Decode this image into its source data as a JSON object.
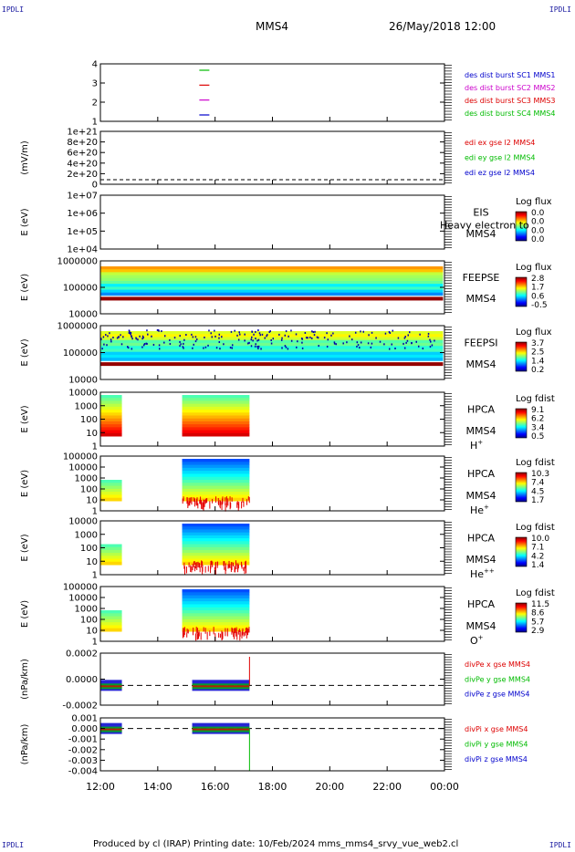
{
  "corners": {
    "tl": "IPDLI",
    "tr": "IPDLI",
    "bl": "IPDLI",
    "br": "IPDLI"
  },
  "header": {
    "spacecraft": "MMS4",
    "date_time": "26/May/2018 12:00"
  },
  "footer": {
    "text": "Produced by cl (IRAP)    Printing date: 10/Feb/2024    mms_mms4_srvy_vue_web2.cl"
  },
  "colors": {
    "mms1": "#0000cc",
    "mms2": "#cc00cc",
    "mms3": "#dd0000",
    "mms4": "#00bb00",
    "axis": "#000000"
  },
  "chart_data": {
    "type": "stacked-timeseries",
    "x": {
      "ticks": [
        "12:00",
        "14:00",
        "16:00",
        "18:00",
        "20:00",
        "22:00",
        "00:00"
      ],
      "start_hour": 12,
      "end_hour": 24
    },
    "panels": [
      {
        "id": "burst",
        "ylabel": "",
        "yticks": [
          "4",
          "3",
          "2",
          "1"
        ],
        "legend": [
          {
            "text": "des dist burst SC1 MMS1",
            "color": "#0000cc"
          },
          {
            "text": "des dist burst SC2 MMS2",
            "color": "#cc00cc"
          },
          {
            "text": "des dist burst SC3 MMS3",
            "color": "#dd0000"
          },
          {
            "text": "des dist burst SC4 MMS4",
            "color": "#00bb00"
          }
        ],
        "segments": [
          {
            "sc": 4,
            "start": 15.45,
            "end": 15.8
          },
          {
            "sc": 3,
            "start": 15.45,
            "end": 15.8
          },
          {
            "sc": 2,
            "start": 15.45,
            "end": 15.8
          },
          {
            "sc": 1,
            "start": 15.45,
            "end": 15.8
          }
        ]
      },
      {
        "id": "edi",
        "ylabel": "(mV/m)",
        "yticks": [
          "1e+21",
          "8e+20",
          "6e+20",
          "4e+20",
          "2e+20",
          "0"
        ],
        "legend": [
          {
            "text": "edi ex gse l2 MMS4",
            "color": "#dd0000"
          },
          {
            "text": "edi ey gse l2 MMS4",
            "color": "#00bb00"
          },
          {
            "text": "edi ez gse l2 MMS4",
            "color": "#0000cc"
          }
        ]
      },
      {
        "id": "eis",
        "ylabel": "E (eV)",
        "yticks": [
          "1e+07",
          "1e+06",
          "1e+05",
          "1e+04"
        ],
        "instrument": [
          "EIS",
          "MMS4"
        ],
        "overlay": "Heavy electron to",
        "cbar": {
          "title": "Log flux",
          "ticks": [
            "0.0",
            "0.0",
            "0.0",
            "0.0"
          ]
        }
      },
      {
        "id": "feepse",
        "ylabel": "E (eV)",
        "yticks": [
          "1000000",
          "100000",
          "10000"
        ],
        "instrument": [
          "FEEPSE",
          "MMS4"
        ],
        "cbar": {
          "title": "Log flux",
          "ticks": [
            "2.8",
            "1.7",
            "0.6",
            "-0.5"
          ]
        },
        "coverage": [
          {
            "start": 12.0,
            "end": 23.95
          }
        ]
      },
      {
        "id": "feepsi",
        "ylabel": "E (eV)",
        "yticks": [
          "1000000",
          "100000",
          "10000"
        ],
        "instrument": [
          "FEEPSI",
          "MMS4"
        ],
        "cbar": {
          "title": "Log flux",
          "ticks": [
            "3.7",
            "2.5",
            "1.4",
            "0.2"
          ]
        },
        "coverage": [
          {
            "start": 12.0,
            "end": 23.95
          }
        ]
      },
      {
        "id": "hpca_h",
        "ylabel": "E (eV)",
        "yticks": [
          "10000",
          "1000",
          "100",
          "10",
          "1"
        ],
        "instrument": [
          "HPCA",
          "MMS4"
        ],
        "species": "H",
        "species_sup": "+",
        "cbar": {
          "title": "Log fdist",
          "ticks": [
            "9.1",
            "6.2",
            "3.4",
            "0.5"
          ]
        },
        "coverage": [
          {
            "start": 12.0,
            "end": 12.75
          },
          {
            "start": 14.85,
            "end": 17.2
          }
        ]
      },
      {
        "id": "hpca_he",
        "ylabel": "E (eV)",
        "yticks": [
          "100000",
          "10000",
          "1000",
          "100",
          "10",
          "1"
        ],
        "instrument": [
          "HPCA",
          "MMS4"
        ],
        "species": "He",
        "species_sup": "+",
        "cbar": {
          "title": "Log fdist",
          "ticks": [
            "10.3",
            "7.4",
            "4.5",
            "1.7"
          ]
        },
        "coverage": [
          {
            "start": 12.0,
            "end": 12.75
          },
          {
            "start": 14.85,
            "end": 17.2
          }
        ]
      },
      {
        "id": "hpca_hepp",
        "ylabel": "E (eV)",
        "yticks": [
          "10000",
          "1000",
          "100",
          "10",
          "1"
        ],
        "instrument": [
          "HPCA",
          "MMS4"
        ],
        "species": "He",
        "species_sup": "++",
        "cbar": {
          "title": "Log fdist",
          "ticks": [
            "10.0",
            "7.1",
            "4.2",
            "1.4"
          ]
        },
        "coverage": [
          {
            "start": 12.0,
            "end": 12.75
          },
          {
            "start": 14.85,
            "end": 17.2
          }
        ]
      },
      {
        "id": "hpca_o",
        "ylabel": "E (eV)",
        "yticks": [
          "100000",
          "10000",
          "1000",
          "100",
          "10",
          "1"
        ],
        "instrument": [
          "HPCA",
          "MMS4"
        ],
        "species": "O",
        "species_sup": "+",
        "cbar": {
          "title": "Log fdist",
          "ticks": [
            "11.5",
            "8.6",
            "5.7",
            "2.9"
          ]
        },
        "coverage": [
          {
            "start": 12.0,
            "end": 12.75
          },
          {
            "start": 14.85,
            "end": 17.2
          }
        ]
      },
      {
        "id": "divpe",
        "ylabel": "(nPa/km)",
        "yticks": [
          "0.0002",
          "0.0000",
          "-0.0002"
        ],
        "legend": [
          {
            "text": "divPe x gse MMS4",
            "color": "#dd0000"
          },
          {
            "text": "divPe y gse MMS4",
            "color": "#00bb00"
          },
          {
            "text": "divPe z gse MMS4",
            "color": "#0000cc"
          }
        ],
        "coverage": [
          {
            "start": 12.0,
            "end": 12.75
          },
          {
            "start": 15.2,
            "end": 17.2
          }
        ]
      },
      {
        "id": "divpi",
        "ylabel": "(nPa/km)",
        "yticks": [
          "0.001",
          "0.000",
          "-0.001",
          "-0.002",
          "-0.003",
          "-0.004"
        ],
        "legend": [
          {
            "text": "divPi x gse MMS4",
            "color": "#dd0000"
          },
          {
            "text": "divPi y gse MMS4",
            "color": "#00bb00"
          },
          {
            "text": "divPi z gse MMS4",
            "color": "#0000cc"
          }
        ],
        "coverage": [
          {
            "start": 12.0,
            "end": 12.75
          },
          {
            "start": 15.2,
            "end": 17.2
          }
        ]
      }
    ]
  }
}
